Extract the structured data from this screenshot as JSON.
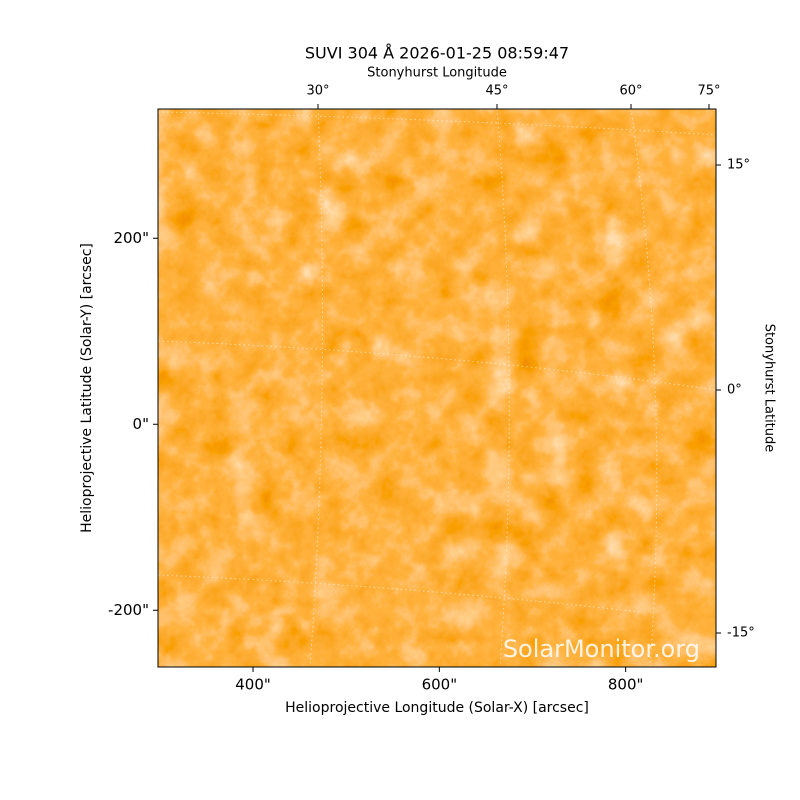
{
  "chart_data": {
    "type": "image",
    "title": "SUVI 304 Å 2026-01-25 08:59:47",
    "xlabel": "Helioprojective Longitude (Solar-X) [arcsec]",
    "ylabel": "Helioprojective Latitude (Solar-Y) [arcsec]",
    "top_label": "Stonyhurst Longitude",
    "right_label": "Stonyhurst Latitude",
    "watermark": "SolarMonitor.org",
    "xlim": [
      298,
      897
    ],
    "ylim": [
      -261,
      339
    ],
    "xticks": [
      {
        "value": 400,
        "label": "400\""
      },
      {
        "value": 600,
        "label": "600\""
      },
      {
        "value": 800,
        "label": "800\""
      }
    ],
    "yticks": [
      {
        "value": -200,
        "label": "-200\""
      },
      {
        "value": 0,
        "label": "0\""
      },
      {
        "value": 200,
        "label": "200\""
      }
    ],
    "lon_ticks": [
      {
        "value": 30,
        "label": "30°"
      },
      {
        "value": 45,
        "label": "45°"
      },
      {
        "value": 60,
        "label": "60°"
      },
      {
        "value": 75,
        "label": "75°"
      }
    ],
    "lat_ticks": [
      {
        "value": 15,
        "label": "15°"
      },
      {
        "value": 0,
        "label": "0°"
      },
      {
        "value": -15,
        "label": "-15°"
      }
    ]
  }
}
